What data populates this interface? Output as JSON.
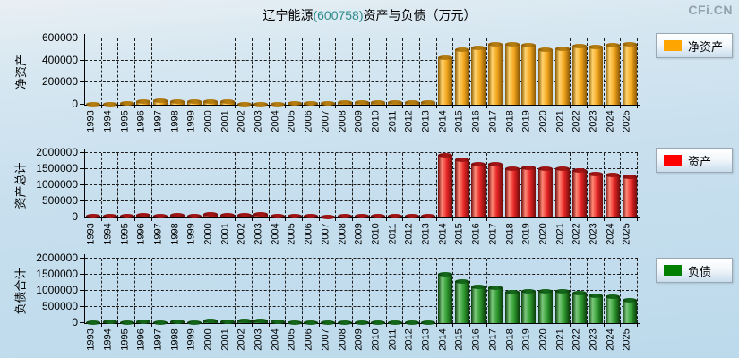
{
  "page": {
    "title": {
      "prefix": "辽宁能源",
      "code": "(600758)",
      "suffix": "资产与负债（万元）"
    },
    "logo": "CFi.CN",
    "colors": {
      "title_code": "#2e8b8b",
      "logo": "#93a1ad",
      "grid": "#1c1c1c",
      "background_top": "#e9eff4",
      "background_bottom": "#bcdaec"
    }
  },
  "chart_data": [
    {
      "type": "bar",
      "ylabel": "净资产",
      "legend": "净资产",
      "legend_position": "right",
      "grid": true,
      "legend_color": "#FFA500",
      "bar_colors": {
        "dark": "#8a5a06",
        "light": "#ffd36e",
        "main": "#f2a51c",
        "cap": "#b57d10"
      },
      "ylim": [
        0,
        600000
      ],
      "yticks": [
        0,
        200000,
        400000,
        600000
      ],
      "categories": [
        1993,
        1994,
        1995,
        1996,
        1997,
        1998,
        1999,
        2000,
        2001,
        2002,
        2003,
        2004,
        2005,
        2006,
        2007,
        2008,
        2009,
        2010,
        2011,
        2012,
        2013,
        2014,
        2015,
        2016,
        2017,
        2018,
        2019,
        2020,
        2021,
        2022,
        2023,
        2024,
        2025
      ],
      "values": [
        12000,
        12000,
        16000,
        32000,
        40000,
        33000,
        35000,
        35000,
        30000,
        8000,
        8000,
        12000,
        15000,
        16000,
        17000,
        21000,
        25000,
        26000,
        26000,
        27000,
        28000,
        430000,
        505000,
        520000,
        555000,
        550000,
        545000,
        505000,
        510000,
        535000,
        525000,
        545000,
        555000
      ]
    },
    {
      "type": "bar",
      "ylabel": "资产总计",
      "legend": "资产",
      "legend_position": "right",
      "grid": true,
      "legend_color": "#FF0000",
      "bar_colors": {
        "dark": "#700d0d",
        "light": "#ff8a78",
        "main": "#e62424",
        "cap": "#a31515"
      },
      "ylim": [
        0,
        2000000
      ],
      "yticks": [
        0,
        500000,
        1000000,
        1500000,
        2000000
      ],
      "categories": [
        1993,
        1994,
        1995,
        1996,
        1997,
        1998,
        1999,
        2000,
        2001,
        2002,
        2003,
        2004,
        2005,
        2006,
        2007,
        2008,
        2009,
        2010,
        2011,
        2012,
        2013,
        2014,
        2015,
        2016,
        2017,
        2018,
        2019,
        2020,
        2021,
        2022,
        2023,
        2024,
        2025
      ],
      "values": [
        45000,
        60000,
        50000,
        75000,
        65000,
        75000,
        65000,
        110000,
        90000,
        80000,
        110000,
        60000,
        50000,
        45000,
        35000,
        50000,
        50000,
        50000,
        50000,
        50000,
        60000,
        1950000,
        1800000,
        1670000,
        1660000,
        1530000,
        1555000,
        1525000,
        1515000,
        1470000,
        1355000,
        1335000,
        1270000
      ]
    },
    {
      "type": "bar",
      "ylabel": "负债合计",
      "legend": "负债",
      "legend_position": "right",
      "grid": true,
      "legend_color": "#008000",
      "bar_colors": {
        "dark": "#0b3d0b",
        "light": "#7cc87c",
        "main": "#2f9b2f",
        "cap": "#14661a"
      },
      "ylim": [
        0,
        2000000
      ],
      "yticks": [
        0,
        500000,
        1000000,
        1500000,
        2000000
      ],
      "categories": [
        1993,
        1994,
        1995,
        1996,
        1997,
        1998,
        1999,
        2000,
        2001,
        2002,
        2003,
        2004,
        2005,
        2006,
        2007,
        2008,
        2009,
        2010,
        2011,
        2012,
        2013,
        2014,
        2015,
        2016,
        2017,
        2018,
        2019,
        2020,
        2021,
        2022,
        2023,
        2024,
        2025
      ],
      "values": [
        30000,
        45000,
        35000,
        45000,
        30000,
        45000,
        35000,
        70000,
        60000,
        70000,
        75000,
        50000,
        40000,
        25000,
        20000,
        25000,
        25000,
        25000,
        25000,
        25000,
        30000,
        1520000,
        1295000,
        1145000,
        1105000,
        985000,
        1000000,
        1005000,
        1005000,
        940000,
        855000,
        830000,
        725000
      ]
    }
  ]
}
